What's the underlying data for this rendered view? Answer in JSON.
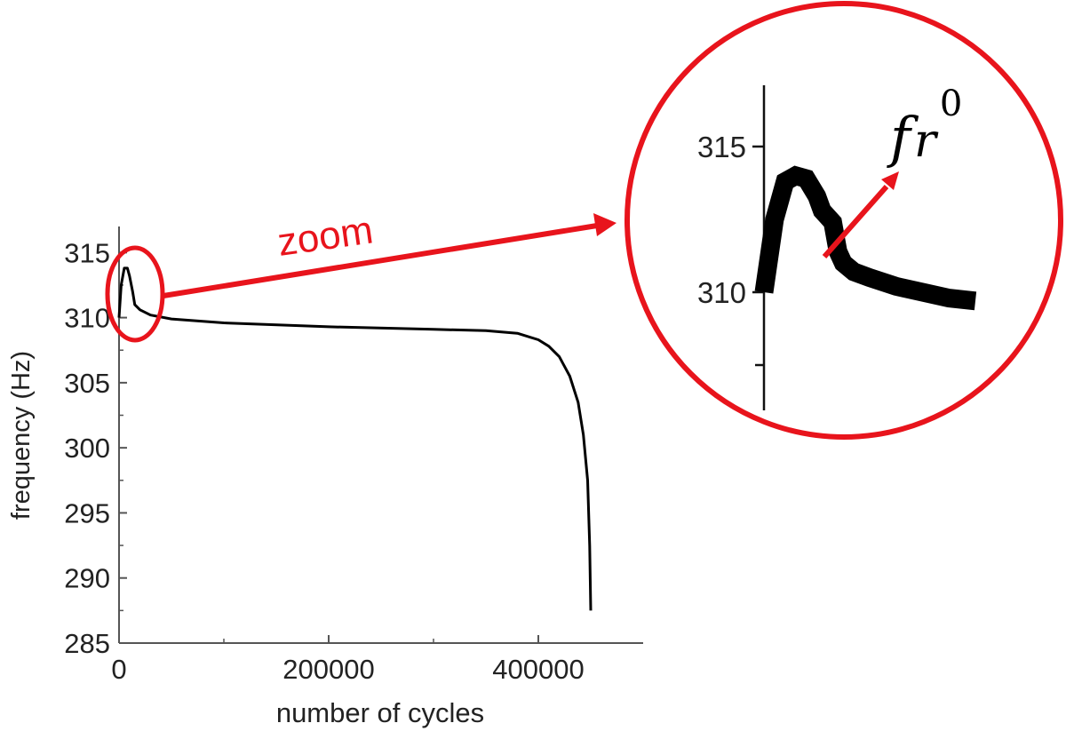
{
  "chart_data": [
    {
      "type": "line",
      "title": "",
      "xlabel": "number of cycles",
      "ylabel": "frequency (Hz)",
      "xlim": [
        0,
        500000
      ],
      "ylim": [
        285,
        317
      ],
      "x_ticks": [
        0,
        200000,
        400000
      ],
      "x_tick_labels": [
        "0",
        "200000",
        "400000"
      ],
      "y_ticks": [
        285,
        290,
        295,
        300,
        305,
        310,
        315
      ],
      "y_tick_labels": [
        "285",
        "290",
        "295",
        "300",
        "305",
        "310",
        "315"
      ],
      "grid": false,
      "series": [
        {
          "x": [
            0,
            2000,
            5000,
            8000,
            10000,
            13000,
            15000,
            20000,
            30000,
            50000,
            100000,
            200000,
            300000,
            350000,
            380000,
            400000,
            410000,
            420000,
            430000,
            438000,
            443000,
            447000,
            449000,
            450000
          ],
          "y": [
            310.0,
            312.5,
            313.8,
            313.8,
            313.2,
            312.0,
            311.0,
            310.6,
            310.2,
            309.9,
            309.6,
            309.3,
            309.1,
            309.0,
            308.8,
            308.3,
            307.8,
            307.0,
            305.5,
            303.5,
            301.0,
            297.5,
            292.5,
            287.5
          ]
        }
      ]
    },
    {
      "type": "line",
      "title": "",
      "xlabel": "",
      "ylabel": "",
      "ylim": [
        306.5,
        317
      ],
      "y_ticks": [
        310,
        315
      ],
      "y_tick_labels": [
        "310",
        "315"
      ],
      "grid": false,
      "series": [
        {
          "x": [
            0,
            2000,
            4000,
            6000,
            8000,
            10000,
            11000,
            12000,
            13000,
            14000,
            15000,
            17000,
            20000,
            25000,
            30000,
            35000,
            40000
          ],
          "y": [
            310.0,
            312.5,
            313.8,
            314.0,
            313.9,
            313.3,
            312.8,
            312.6,
            312.4,
            311.4,
            311.0,
            310.7,
            310.5,
            310.2,
            310.0,
            309.8,
            309.7
          ]
        }
      ]
    }
  ],
  "annotations": {
    "zoom_label": "zoom",
    "fr_symbol": "f",
    "fr_subscript": "r",
    "fr_superscript": "0"
  },
  "colors": {
    "highlight": "#e8141c",
    "line": "#000000"
  }
}
